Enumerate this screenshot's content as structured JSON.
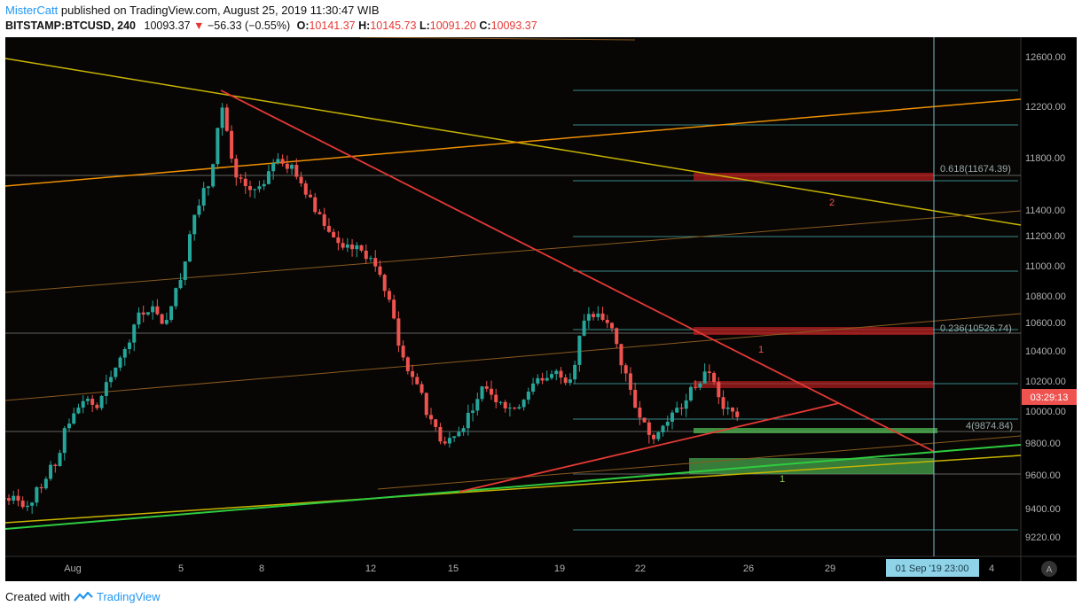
{
  "header": {
    "author": "MisterCatt",
    "published": "published on TradingView.com, August 25, 2019 11:30:47 WIB",
    "symbol": "BITSTAMP:BTCUSD, 240",
    "last": "10093.37",
    "change": "−56.33 (−0.55%)",
    "o_label": "O:",
    "o_value": "10141.37",
    "h_label": "H:",
    "h_value": "10145.73",
    "l_label": "L:",
    "l_value": "10091.20",
    "c_label": "C:",
    "c_value": "10093.37"
  },
  "footer": {
    "created_with": "Created with",
    "brand": "TradingView"
  },
  "colors": {
    "up": "#26a69a",
    "down": "#ef5350",
    "bg": "#000000",
    "price_tag": "#ef5350",
    "date_tag": "#8fd3e8"
  },
  "chart_data": {
    "type": "candlestick",
    "ylim": [
      9100,
      12750
    ],
    "y_ticks": [
      "12600.00",
      "12200.00",
      "11800.00",
      "11400.00",
      "11200.00",
      "11000.00",
      "10800.00",
      "10600.00",
      "10400.00",
      "10200.00",
      "10000.00",
      "9800.00",
      "9600.00",
      "9400.00",
      "9220.00"
    ],
    "x_ticks": [
      "Aug",
      "5",
      "8",
      "12",
      "15",
      "19",
      "22",
      "26",
      "29",
      "4"
    ],
    "current_price_label": "03:29:13",
    "cursor_date_label": "01 Sep '19   23:00",
    "axis_button": "A",
    "series_approx_close": [
      9520,
      9480,
      9600,
      9750,
      10050,
      10200,
      10150,
      10350,
      10550,
      10800,
      10850,
      10750,
      11050,
      11500,
      11700,
      12250,
      11750,
      11650,
      11700,
      11900,
      11850,
      11650,
      11500,
      11350,
      11300,
      11250,
      11150,
      10900,
      10500,
      10300,
      10050,
      9900,
      10000,
      10150,
      10300,
      10200,
      10150,
      10250,
      10350,
      10400,
      10350,
      10750,
      10800,
      10700,
      10400,
      10100,
      9950,
      10050,
      10150,
      10300,
      10400,
      10150,
      10100
    ],
    "annotations": [
      {
        "text": "2",
        "price": 11420
      },
      {
        "text": "1",
        "price": 10470
      },
      {
        "text": "1",
        "price": 9570
      },
      {
        "text": "0.618(11674.39)",
        "price": 11674
      },
      {
        "text": "0.236(10526.74)",
        "price": 10527
      },
      {
        "text": "4(9874.84)",
        "price": 9875
      }
    ]
  }
}
